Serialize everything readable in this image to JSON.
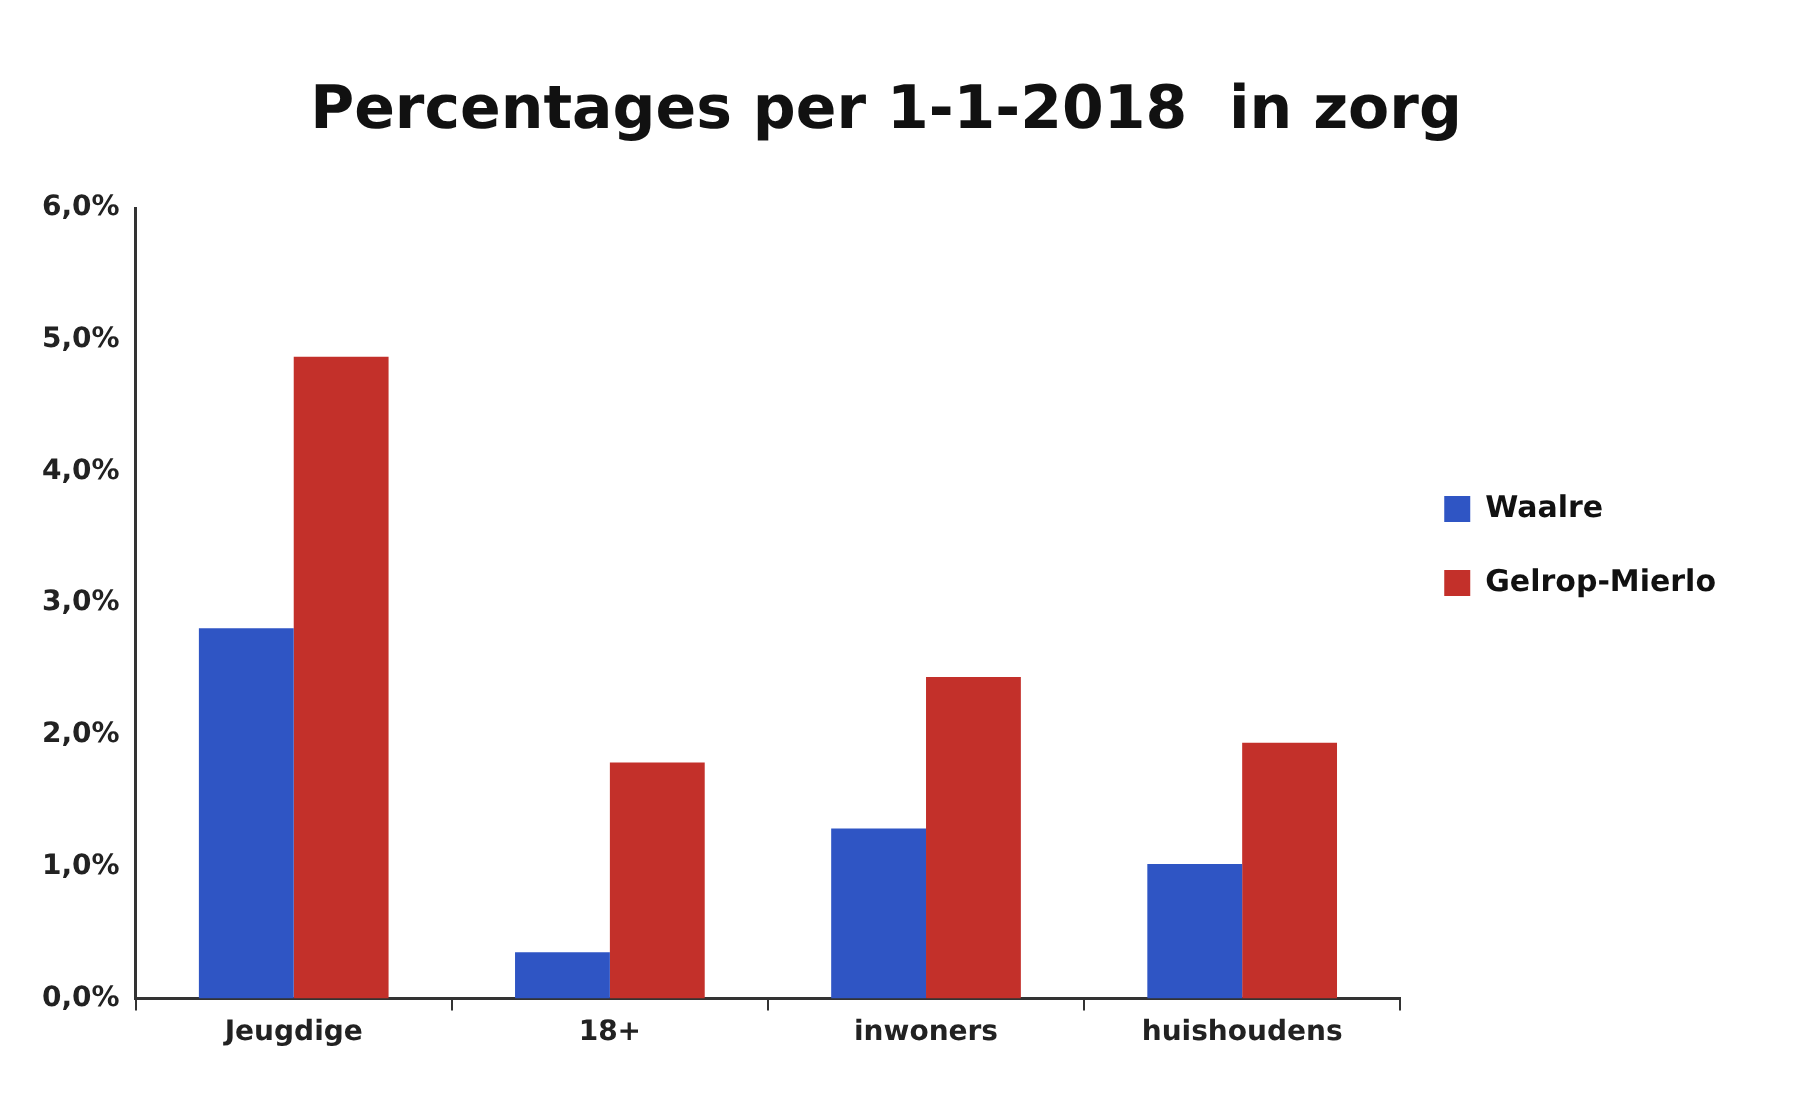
{
  "chart_data": {
    "type": "bar",
    "title": "Percentages per 1-1-2018  in zorg",
    "categories": [
      "Jeugdige",
      "18+",
      "inwoners",
      "huishoudens"
    ],
    "series": [
      {
        "name": "Waalre",
        "color": "#2f55c4",
        "values": [
          2.81,
          0.35,
          1.29,
          1.02
        ]
      },
      {
        "name": "Gelrop-Mierlo",
        "color": "#c3302a",
        "values": [
          4.87,
          1.79,
          2.44,
          1.94
        ]
      }
    ],
    "ylim": [
      0,
      6
    ],
    "yticks": [
      {
        "value": 0,
        "label": "0,0%"
      },
      {
        "value": 1,
        "label": "1,0%"
      },
      {
        "value": 2,
        "label": "2,0%"
      },
      {
        "value": 3,
        "label": "3,0%"
      },
      {
        "value": 4,
        "label": "4,0%"
      },
      {
        "value": 5,
        "label": "5,0%"
      },
      {
        "value": 6,
        "label": "6,0%"
      }
    ],
    "grid": false,
    "legend": "right"
  }
}
